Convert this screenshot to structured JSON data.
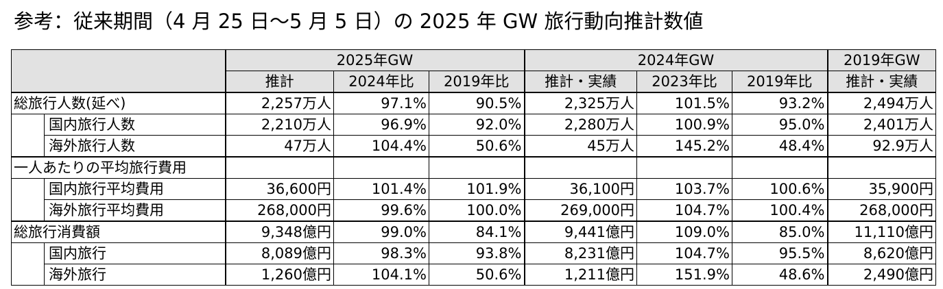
{
  "title": "参考：従来期間（4 月 25 日～5 月 5 日）の 2025 年 GW 旅行動向推計数値",
  "header": {
    "groups": [
      "2025年GW",
      "2024年GW",
      "2019年GW"
    ],
    "columns": [
      "推計",
      "2024年比",
      "2019年比",
      "推計・実績",
      "2023年比",
      "2019年比",
      "推計・実績"
    ]
  },
  "sections": [
    {
      "label": "総旅行人数(延べ)",
      "values": [
        "2,257万人",
        "97.1%",
        "90.5%",
        "2,325万人",
        "101.5%",
        "93.2%",
        "2,494万人"
      ],
      "rows": [
        {
          "label": "国内旅行人数",
          "values": [
            "2,210万人",
            "96.9%",
            "92.0%",
            "2,280万人",
            "100.9%",
            "95.0%",
            "2,401万人"
          ]
        },
        {
          "label": "海外旅行人数",
          "values": [
            "47万人",
            "104.4%",
            "50.6%",
            "45万人",
            "145.2%",
            "48.4%",
            "92.9万人"
          ]
        }
      ]
    },
    {
      "label": "一人あたりの平均旅行費用",
      "values": [
        "",
        "",
        "",
        "",
        "",
        "",
        ""
      ],
      "rows": [
        {
          "label": "国内旅行平均費用",
          "values": [
            "36,600円",
            "101.4%",
            "101.9%",
            "36,100円",
            "103.7%",
            "100.6%",
            "35,900円"
          ]
        },
        {
          "label": "海外旅行平均費用",
          "values": [
            "268,000円",
            "99.6%",
            "100.0%",
            "269,000円",
            "104.7%",
            "100.4%",
            "268,000円"
          ]
        }
      ]
    },
    {
      "label": "総旅行消費額",
      "values": [
        "9,348億円",
        "99.0%",
        "84.1%",
        "9,441億円",
        "109.0%",
        "85.0%",
        "11,110億円"
      ],
      "rows": [
        {
          "label": "国内旅行",
          "values": [
            "8,089億円",
            "98.3%",
            "93.8%",
            "8,231億円",
            "104.7%",
            "95.5%",
            "8,620億円"
          ]
        },
        {
          "label": "海外旅行",
          "values": [
            "1,260億円",
            "104.1%",
            "50.6%",
            "1,211億円",
            "151.9%",
            "48.6%",
            "2,490億円"
          ]
        }
      ]
    }
  ]
}
